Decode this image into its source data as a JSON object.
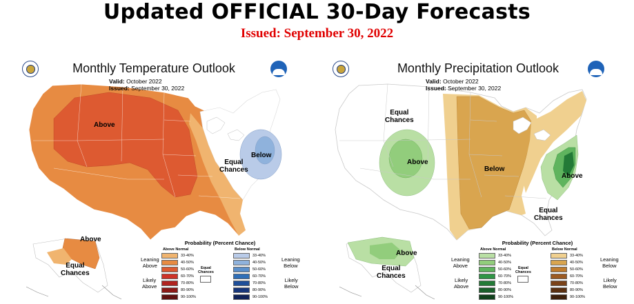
{
  "page": {
    "title": "Updated OFFICIAL 30-Day Forecasts",
    "issued": "Issued: September 30, 2022"
  },
  "temperature": {
    "title": "Monthly Temperature Outlook",
    "valid_label": "Valid:",
    "valid_value": "October 2022",
    "issued_label": "Issued:",
    "issued_value": "September 30, 2022",
    "labels": {
      "above_main": "Above",
      "below_east": "Below",
      "equal_east_1": "Equal",
      "equal_east_2": "Chances",
      "alaska_above": "Above",
      "alaska_equal_1": "Equal",
      "alaska_equal_2": "Chances"
    },
    "legend": {
      "title": "Probability (Percent Chance)",
      "above_head": "Above Normal",
      "below_head": "Below Normal",
      "equal_label_1": "Equal",
      "equal_label_2": "Chances",
      "leaning_above_1": "Leaning",
      "leaning_above_2": "Above",
      "likely_above_1": "Likely",
      "likely_above_2": "Above",
      "leaning_below_1": "Leaning",
      "leaning_below_2": "Below",
      "likely_below_1": "Likely",
      "likely_below_2": "Below",
      "ranges": [
        "33-40%",
        "40-50%",
        "50-60%",
        "60-70%",
        "70-80%",
        "80-90%",
        "90-100%"
      ],
      "above_colors": [
        "#f0b46f",
        "#e78b42",
        "#dd5a31",
        "#cf3328",
        "#b0231f",
        "#8a1a17",
        "#5e1110"
      ],
      "below_colors": [
        "#b9cbe8",
        "#8fb2dc",
        "#5b90cc",
        "#2f6fb8",
        "#1f4f99",
        "#17367a",
        "#0f2258"
      ]
    }
  },
  "precipitation": {
    "title": "Monthly Precipitation Outlook",
    "valid_label": "Valid:",
    "valid_value": "October 2022",
    "issued_label": "Issued:",
    "issued_value": "September 30, 2022",
    "labels": {
      "equal_west_1": "Equal",
      "equal_west_2": "Chances",
      "above_west": "Above",
      "below_central": "Below",
      "above_east": "Above",
      "equal_east_1": "Equal",
      "equal_east_2": "Chances",
      "alaska_above": "Above",
      "alaska_equal_1": "Equal",
      "alaska_equal_2": "Chances"
    },
    "legend": {
      "title": "Probability (Percent Chance)",
      "above_head": "Above Normal",
      "below_head": "Below Normal",
      "equal_label_1": "Equal",
      "equal_label_2": "Chances",
      "leaning_above_1": "Leaning",
      "leaning_above_2": "Above",
      "likely_above_1": "Likely",
      "likely_above_2": "Above",
      "leaning_below_1": "Leaning",
      "leaning_below_2": "Below",
      "likely_below_1": "Likely",
      "likely_below_2": "Below",
      "ranges": [
        "33-40%",
        "40-50%",
        "50-60%",
        "60-70%",
        "70-80%",
        "80-90%",
        "90-100%"
      ],
      "above_colors": [
        "#b9dfa4",
        "#92cd7c",
        "#5fb45e",
        "#2f9545",
        "#237a37",
        "#1a5e2b",
        "#10401c"
      ],
      "below_colors": [
        "#f0d08f",
        "#d9a54f",
        "#c07c2e",
        "#9c5a22",
        "#7a4219",
        "#5a3011",
        "#3d200b"
      ]
    }
  }
}
